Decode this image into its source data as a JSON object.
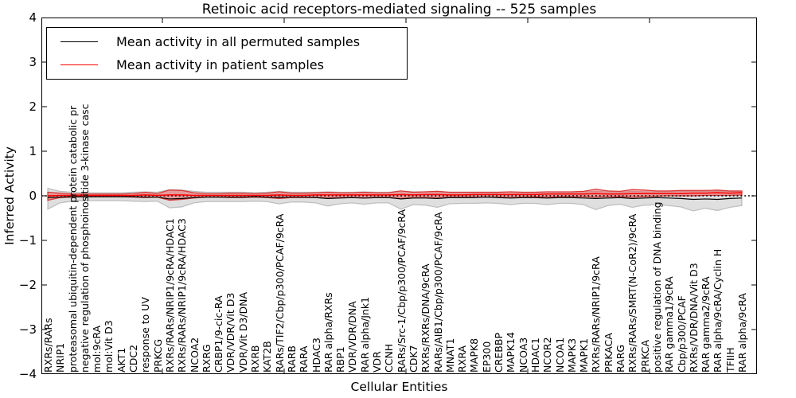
{
  "legend": {
    "items": [
      {
        "label": "Mean activity in all permuted samples",
        "color": "#000000"
      },
      {
        "label": "Mean activity in patient samples",
        "color": "#ff0000"
      }
    ]
  },
  "chart_data": {
    "type": "line",
    "title": "Retinoic acid receptors-mediated signaling -- 525 samples",
    "xlabel": "Cellular Entities",
    "ylabel": "Inferred Activity",
    "ylim": [
      -4,
      4
    ],
    "ytick_labels": [
      "4",
      "3",
      "2",
      "1",
      "0",
      "−1",
      "−2",
      "−3",
      "−4"
    ],
    "grid": false,
    "legend_position": "upper left",
    "zero_line": {
      "y": 0,
      "style": "dotted",
      "color": "#000000"
    },
    "categories": [
      "RXRs/RARs",
      "NRIP1",
      "proteasomal ubiquitin-dependent protein catabolic pr",
      "negative regulation of phosphoinositide 3-kinase casc",
      "mol:9cRA",
      "mol:Vit D3",
      "AKT1",
      "CDC2",
      "response to UV",
      "PRKCG",
      "RXRs/RARs/NRIP1/9cRA/HDAC1",
      "RXRs/RARs/NRIP1/9cRA/HDAC3",
      "NCOA2",
      "RXRG",
      "CRBP1/9-cic-RA",
      "VDR/VDR/Vit D3",
      "VDR/Vit D3/DNA",
      "RXRB",
      "KAT2B",
      "RARs/TIF2/Cbp/p300/PCAF/9cRA",
      "RARB",
      "RARA",
      "HDAC3",
      "RAR alpha/RXRs",
      "RBP1",
      "VDR/VDR/DNA",
      "RAR alpha/Jnk1",
      "VDR",
      "CCNH",
      "RARs/Src-1/Cbp/p300/PCAF/9cRA",
      "CDK7",
      "RXRs/RXRs/DNA/9cRA",
      "RARs/AIB1/Cbp/p300/PCAF/9cRA",
      "MNAT1",
      "RXRA",
      "MAPK8",
      "EP300",
      "CREBBP",
      "MAPK14",
      "NCOA3",
      "HDAC1",
      "NCOR2",
      "NCOA1",
      "MAPK3",
      "MAPK1",
      "RXRs/RARs/NRIP1/9cRA",
      "PRKACA",
      "RARG",
      "RXRs/RARs/SMRT(N-CoR2)/9cRA",
      "PRKCA",
      "positive regulation of DNA binding",
      "RAR gamma1/9cRA",
      "Cbp/p300/PCAF",
      "RXRs/VDR/DNA/Vit D3",
      "RAR gamma2/9cRA",
      "RAR alpha/9cRA/Cyclin H",
      "TFIIH",
      "RAR alpha/9cRA"
    ],
    "series": [
      {
        "name": "Mean activity in all permuted samples",
        "color": "#000000",
        "band_fill": "rgba(185,185,185,0.45)",
        "band_edge": "rgba(150,150,150,0.55)",
        "values": [
          -0.04,
          -0.03,
          -0.02,
          -0.02,
          -0.02,
          -0.02,
          -0.02,
          -0.02,
          -0.03,
          -0.03,
          -0.07,
          -0.06,
          -0.04,
          -0.03,
          -0.03,
          -0.03,
          -0.03,
          -0.02,
          -0.03,
          -0.04,
          -0.03,
          -0.03,
          -0.04,
          -0.06,
          -0.05,
          -0.04,
          -0.05,
          -0.04,
          -0.04,
          -0.07,
          -0.05,
          -0.05,
          -0.06,
          -0.04,
          -0.04,
          -0.04,
          -0.03,
          -0.04,
          -0.05,
          -0.04,
          -0.04,
          -0.05,
          -0.04,
          -0.04,
          -0.05,
          -0.06,
          -0.05,
          -0.04,
          -0.06,
          -0.05,
          -0.04,
          -0.05,
          -0.06,
          -0.08,
          -0.07,
          -0.08,
          -0.06,
          -0.05
        ],
        "band_upper": [
          0.17,
          0.1,
          0.08,
          0.07,
          0.07,
          0.07,
          0.07,
          0.08,
          0.09,
          0.08,
          0.14,
          0.13,
          0.1,
          0.08,
          0.08,
          0.08,
          0.08,
          0.07,
          0.08,
          0.1,
          0.08,
          0.08,
          0.08,
          0.09,
          0.08,
          0.08,
          0.09,
          0.08,
          0.08,
          0.11,
          0.09,
          0.09,
          0.1,
          0.08,
          0.08,
          0.08,
          0.08,
          0.08,
          0.09,
          0.08,
          0.08,
          0.09,
          0.08,
          0.08,
          0.09,
          0.1,
          0.09,
          0.08,
          0.1,
          0.09,
          0.09,
          0.09,
          0.1,
          0.1,
          0.1,
          0.11,
          0.1,
          0.09
        ],
        "band_lower": [
          -0.3,
          -0.16,
          -0.12,
          -0.11,
          -0.11,
          -0.11,
          -0.11,
          -0.12,
          -0.13,
          -0.12,
          -0.27,
          -0.25,
          -0.16,
          -0.13,
          -0.13,
          -0.13,
          -0.13,
          -0.12,
          -0.13,
          -0.18,
          -0.14,
          -0.14,
          -0.16,
          -0.23,
          -0.18,
          -0.16,
          -0.19,
          -0.16,
          -0.16,
          -0.3,
          -0.2,
          -0.21,
          -0.26,
          -0.18,
          -0.17,
          -0.17,
          -0.16,
          -0.17,
          -0.2,
          -0.17,
          -0.17,
          -0.2,
          -0.17,
          -0.17,
          -0.2,
          -0.31,
          -0.22,
          -0.19,
          -0.26,
          -0.21,
          -0.2,
          -0.22,
          -0.25,
          -0.34,
          -0.28,
          -0.33,
          -0.26,
          -0.22
        ]
      },
      {
        "name": "Mean activity in patient samples",
        "color": "#ff0000",
        "band_fill": "rgba(235,85,85,0.5)",
        "band_edge": "rgba(215,40,40,0.9)",
        "values": [
          0.0,
          0.01,
          0.01,
          0.01,
          0.01,
          0.01,
          0.01,
          0.01,
          0.02,
          0.01,
          0.02,
          0.02,
          0.01,
          0.01,
          0.01,
          0.01,
          0.01,
          0.01,
          0.01,
          0.02,
          0.01,
          0.01,
          0.02,
          0.02,
          0.02,
          0.02,
          0.02,
          0.02,
          0.02,
          0.03,
          0.02,
          0.03,
          0.03,
          0.02,
          0.02,
          0.03,
          0.03,
          0.03,
          0.03,
          0.03,
          0.03,
          0.04,
          0.04,
          0.04,
          0.04,
          0.05,
          0.04,
          0.04,
          0.05,
          0.05,
          0.05,
          0.05,
          0.05,
          0.06,
          0.06,
          0.07,
          0.06,
          0.07
        ],
        "band_upper": [
          0.08,
          0.06,
          0.04,
          0.04,
          0.04,
          0.04,
          0.04,
          0.05,
          0.08,
          0.05,
          0.13,
          0.12,
          0.07,
          0.05,
          0.05,
          0.06,
          0.06,
          0.05,
          0.06,
          0.09,
          0.06,
          0.06,
          0.07,
          0.08,
          0.07,
          0.07,
          0.08,
          0.07,
          0.07,
          0.11,
          0.08,
          0.09,
          0.1,
          0.08,
          0.08,
          0.08,
          0.08,
          0.08,
          0.09,
          0.08,
          0.08,
          0.09,
          0.09,
          0.09,
          0.1,
          0.15,
          0.11,
          0.1,
          0.14,
          0.13,
          0.11,
          0.11,
          0.12,
          0.12,
          0.12,
          0.13,
          0.11,
          0.11
        ],
        "band_lower": [
          -0.1,
          -0.04,
          -0.03,
          -0.02,
          -0.02,
          -0.02,
          -0.02,
          -0.03,
          -0.04,
          -0.03,
          -0.1,
          -0.08,
          -0.05,
          -0.03,
          -0.03,
          -0.04,
          -0.04,
          -0.03,
          -0.04,
          -0.06,
          -0.04,
          -0.04,
          -0.04,
          -0.05,
          -0.04,
          -0.04,
          -0.05,
          -0.04,
          -0.04,
          -0.06,
          -0.04,
          -0.04,
          -0.05,
          -0.03,
          -0.03,
          -0.03,
          -0.03,
          -0.03,
          -0.04,
          -0.03,
          -0.02,
          -0.03,
          -0.02,
          -0.02,
          -0.02,
          -0.03,
          -0.02,
          -0.02,
          -0.03,
          -0.02,
          -0.01,
          0.0,
          0.0,
          0.0,
          0.01,
          0.01,
          0.01,
          0.02
        ]
      }
    ]
  }
}
